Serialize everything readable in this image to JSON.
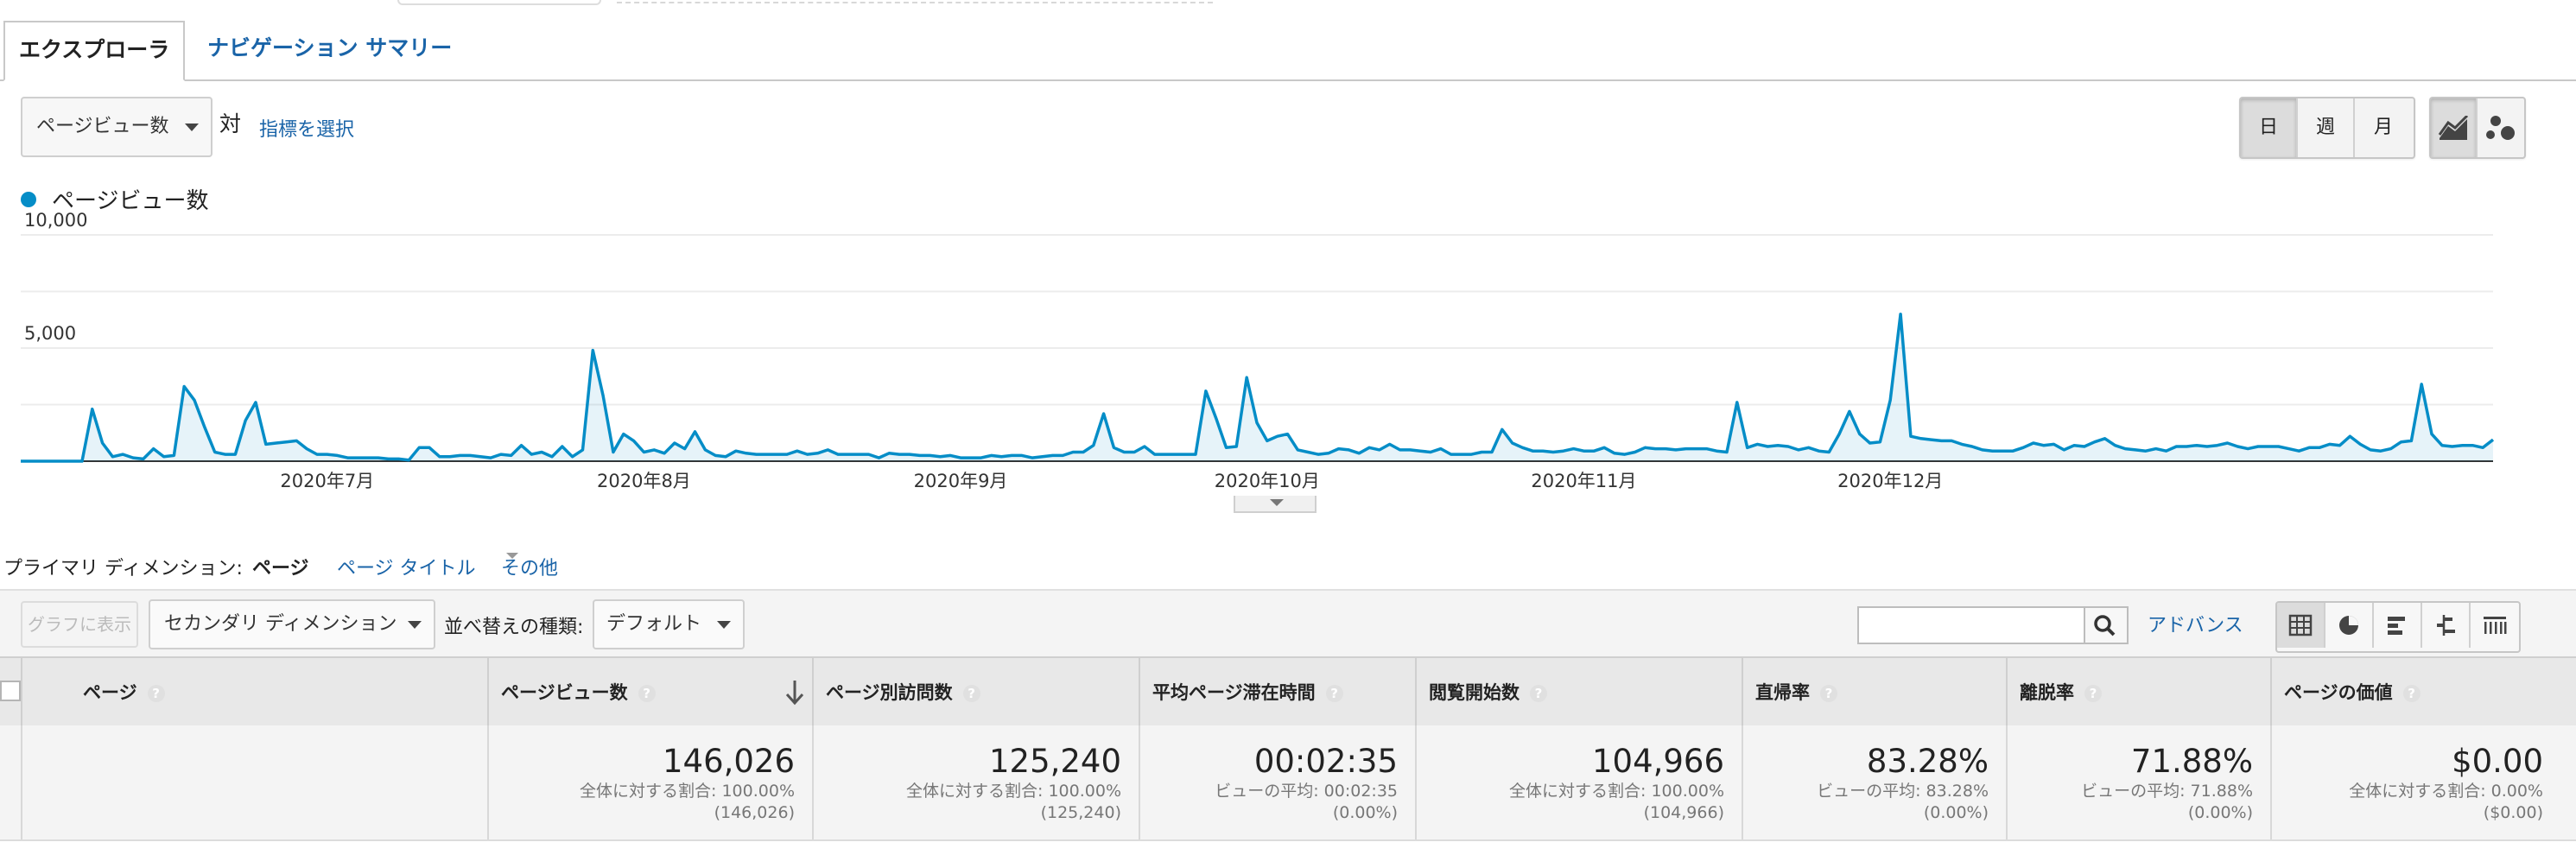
{
  "tabs": [
    {
      "label": "エクスプローラ",
      "active": true
    },
    {
      "label": "ナビゲーション サマリー",
      "active": false
    }
  ],
  "metric_selector": {
    "value": "ページビュー数",
    "vs_label": "対",
    "pick_metric": "指標を選択"
  },
  "time_buttons": [
    {
      "label": "日",
      "active": true
    },
    {
      "label": "週",
      "active": false
    },
    {
      "label": "月",
      "active": false
    }
  ],
  "chart_type_buttons": [
    {
      "icon": "line-chart-icon",
      "active": true
    },
    {
      "icon": "motion-chart-icon",
      "active": false
    }
  ],
  "legend": {
    "label": "ページビュー数",
    "color": "#058dc7"
  },
  "chart_data": {
    "type": "area",
    "series": [
      {
        "name": "ページビュー数",
        "color": "#058dc7"
      }
    ],
    "x_range": [
      "2020-06-01",
      "2020-12-31"
    ],
    "ylim": [
      0,
      10000
    ],
    "yticks": [
      "10,000",
      "5,000"
    ],
    "xticks": [
      "2020年7月",
      "2020年8月",
      "2020年9月",
      "2020年10月",
      "2020年11月",
      "2020年12月"
    ],
    "values": [
      0,
      0,
      0,
      0,
      0,
      0,
      0,
      2300,
      800,
      200,
      300,
      150,
      100,
      550,
      200,
      250,
      3300,
      2700,
      1500,
      400,
      300,
      300,
      1800,
      2600,
      750,
      800,
      850,
      900,
      550,
      300,
      300,
      250,
      150,
      150,
      150,
      150,
      100,
      100,
      50,
      600,
      600,
      200,
      200,
      250,
      250,
      200,
      150,
      300,
      250,
      700,
      300,
      400,
      200,
      650,
      200,
      500,
      4900,
      2900,
      400,
      1200,
      900,
      400,
      500,
      350,
      800,
      550,
      1300,
      500,
      250,
      200,
      450,
      350,
      300,
      300,
      300,
      300,
      450,
      300,
      350,
      500,
      300,
      300,
      300,
      300,
      150,
      350,
      300,
      300,
      250,
      250,
      200,
      250,
      150,
      150,
      150,
      250,
      200,
      250,
      250,
      150,
      200,
      250,
      250,
      400,
      400,
      700,
      2100,
      600,
      400,
      400,
      650,
      300,
      300,
      300,
      300,
      300,
      3100,
      1900,
      600,
      650,
      3700,
      1700,
      900,
      1100,
      1200,
      500,
      400,
      300,
      350,
      550,
      500,
      350,
      600,
      500,
      750,
      500,
      500,
      450,
      400,
      550,
      300,
      300,
      300,
      400,
      400,
      1400,
      800,
      600,
      450,
      450,
      400,
      450,
      550,
      450,
      450,
      600,
      350,
      300,
      400,
      600,
      550,
      550,
      500,
      550,
      550,
      550,
      450,
      400,
      2600,
      600,
      750,
      650,
      700,
      650,
      500,
      600,
      450,
      400,
      1200,
      2200,
      1200,
      800,
      850,
      2700,
      6500,
      1100,
      1000,
      950,
      900,
      900,
      750,
      650,
      500,
      450,
      450,
      450,
      600,
      800,
      700,
      750,
      500,
      700,
      650,
      850,
      1000,
      700,
      550,
      500,
      450,
      550,
      450,
      650,
      650,
      700,
      650,
      700,
      800,
      650,
      550,
      650,
      650,
      650,
      550,
      450,
      600,
      600,
      750,
      700,
      1100,
      750,
      500,
      450,
      550,
      850,
      900,
      3400,
      1200,
      700,
      650,
      700,
      700,
      600,
      950
    ]
  },
  "primary_dimension": {
    "label": "プライマリ ディメンション:",
    "current": "ページ",
    "links": [
      "ページ タイトル",
      "その他"
    ]
  },
  "toolbar": {
    "graph_button": "グラフに表示",
    "secondary_dimension": "セカンダリ ディメンション",
    "sort_label": "並べ替えの種類:",
    "sort_value": "デフォルト",
    "search_placeholder": "",
    "advanced": "アドバンス",
    "view_icons": [
      "table-view-icon",
      "pie-view-icon",
      "performance-view-icon",
      "comparison-view-icon",
      "pivot-view-icon"
    ]
  },
  "table": {
    "columns": [
      {
        "label": "ページ",
        "help": "?"
      },
      {
        "label": "ページビュー数",
        "help": "?",
        "sorted": "desc"
      },
      {
        "label": "ページ別訪問数",
        "help": "?"
      },
      {
        "label": "平均ページ滞在時間",
        "help": "?"
      },
      {
        "label": "閲覧開始数",
        "help": "?"
      },
      {
        "label": "直帰率",
        "help": "?"
      },
      {
        "label": "離脱率",
        "help": "?"
      },
      {
        "label": "ページの価値",
        "help": "?"
      }
    ],
    "totals": [
      {
        "value": "146,026",
        "line1": "全体に対する割合: 100.00%",
        "line2": "(146,026)"
      },
      {
        "value": "125,240",
        "line1": "全体に対する割合: 100.00%",
        "line2": "(125,240)"
      },
      {
        "value": "00:02:35",
        "line1": "ビューの平均: 00:02:35",
        "line2": "(0.00%)"
      },
      {
        "value": "104,966",
        "line1": "全体に対する割合: 100.00%",
        "line2": "(104,966)"
      },
      {
        "value": "83.28%",
        "line1": "ビューの平均: 83.28%",
        "line2": "(0.00%)"
      },
      {
        "value": "71.88%",
        "line1": "ビューの平均: 71.88%",
        "line2": "(0.00%)"
      },
      {
        "value": "$0.00",
        "line1": "全体に対する割合: 0.00%",
        "line2": "($0.00)"
      }
    ]
  }
}
